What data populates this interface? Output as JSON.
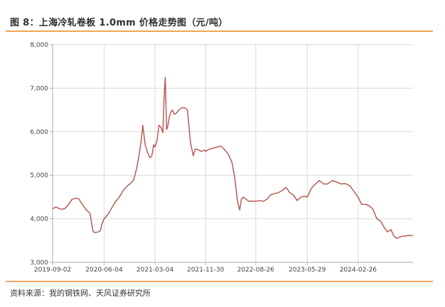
{
  "header": {
    "title": "图 8：上海冷轧卷板 1.0mm 价格走势图（元/吨）"
  },
  "footer": {
    "source": "资料来源：我的钢铁网、天风证券研究所"
  },
  "colors": {
    "line": "#b5524c",
    "grid": "#d9d9d9",
    "axis": "#aaaaaa",
    "accent_rule": "#f0a35a"
  },
  "chart_data": {
    "type": "line",
    "title": "上海冷轧卷板 1.0mm 价格走势图（元/吨）",
    "xlabel": "",
    "ylabel": "",
    "ylim": [
      3000,
      8000
    ],
    "y_ticks": [
      "3,000",
      "4,000",
      "5,000",
      "6,000",
      "7,000",
      "8,000"
    ],
    "y_tick_values": [
      3000,
      4000,
      5000,
      6000,
      7000,
      8000
    ],
    "x_ticks": [
      "2019-09-02",
      "2020-06-04",
      "2021-03-04",
      "2021-11-30",
      "2022-08-26",
      "2023-05-29",
      "2024-02-26"
    ],
    "xlim": [
      "2019-09-02",
      "2024-12-16"
    ],
    "grid": true,
    "legend": "none",
    "series": [
      {
        "x": [
          "2019-09-02",
          "2019-09-20",
          "2019-10-15",
          "2019-11-05",
          "2019-11-25",
          "2019-12-15",
          "2020-01-05",
          "2020-01-20",
          "2020-02-10",
          "2020-03-01",
          "2020-03-20",
          "2020-04-05",
          "2020-04-15",
          "2020-05-05",
          "2020-05-15",
          "2020-05-25",
          "2020-06-04",
          "2020-06-25",
          "2020-07-15",
          "2020-08-05",
          "2020-08-25",
          "2020-09-15",
          "2020-10-05",
          "2020-10-25",
          "2020-11-10",
          "2020-11-25",
          "2020-12-10",
          "2020-12-20",
          "2020-12-28",
          "2021-01-10",
          "2021-01-25",
          "2021-02-05",
          "2021-02-15",
          "2021-02-25",
          "2021-03-04",
          "2021-03-15",
          "2021-03-25",
          "2021-04-05",
          "2021-04-15",
          "2021-04-22",
          "2021-04-28",
          "2021-05-05",
          "2021-05-10",
          "2021-05-20",
          "2021-05-28",
          "2021-06-05",
          "2021-06-15",
          "2021-06-25",
          "2021-07-10",
          "2021-07-25",
          "2021-08-10",
          "2021-08-25",
          "2021-09-10",
          "2021-09-25",
          "2021-10-05",
          "2021-10-15",
          "2021-10-25",
          "2021-11-05",
          "2021-11-15",
          "2021-11-25",
          "2021-11-30",
          "2021-12-20",
          "2022-01-10",
          "2022-01-30",
          "2022-02-20",
          "2022-03-10",
          "2022-04-01",
          "2022-04-20",
          "2022-05-05",
          "2022-05-20",
          "2022-06-01",
          "2022-06-10",
          "2022-06-20",
          "2022-07-05",
          "2022-07-20",
          "2022-08-05",
          "2022-08-26",
          "2022-09-15",
          "2022-10-05",
          "2022-10-25",
          "2022-11-15",
          "2022-12-05",
          "2022-12-25",
          "2023-01-15",
          "2023-02-05",
          "2023-02-25",
          "2023-03-15",
          "2023-04-05",
          "2023-04-25",
          "2023-05-15",
          "2023-05-29",
          "2023-06-20",
          "2023-07-10",
          "2023-08-01",
          "2023-08-25",
          "2023-09-15",
          "2023-10-10",
          "2023-11-01",
          "2023-11-25",
          "2023-12-20",
          "2024-01-15",
          "2024-02-05",
          "2024-02-26",
          "2024-03-15",
          "2024-04-05",
          "2024-04-25",
          "2024-05-15",
          "2024-06-05",
          "2024-06-25",
          "2024-07-15",
          "2024-08-01",
          "2024-08-20",
          "2024-09-05",
          "2024-09-20",
          "2024-10-05",
          "2024-10-20",
          "2024-11-05",
          "2024-11-20",
          "2024-12-05",
          "2024-12-16"
        ],
        "y": [
          4230,
          4270,
          4220,
          4230,
          4320,
          4450,
          4470,
          4460,
          4320,
          4200,
          4130,
          3720,
          3680,
          3700,
          3730,
          3900,
          4000,
          4100,
          4250,
          4400,
          4500,
          4650,
          4750,
          4820,
          4900,
          5150,
          5500,
          5800,
          6150,
          5700,
          5500,
          5400,
          5450,
          5700,
          5650,
          5800,
          6150,
          6100,
          5980,
          6800,
          7250,
          6050,
          6100,
          6350,
          6450,
          6500,
          6400,
          6420,
          6500,
          6550,
          6550,
          6500,
          5750,
          5450,
          5600,
          5600,
          5580,
          5550,
          5560,
          5580,
          5550,
          5600,
          5620,
          5650,
          5670,
          5600,
          5480,
          5300,
          4950,
          4400,
          4200,
          4450,
          4500,
          4450,
          4400,
          4410,
          4400,
          4420,
          4400,
          4450,
          4550,
          4580,
          4600,
          4650,
          4720,
          4600,
          4550,
          4420,
          4500,
          4520,
          4500,
          4700,
          4790,
          4880,
          4800,
          4800,
          4880,
          4850,
          4800,
          4810,
          4750,
          4620,
          4500,
          4330,
          4330,
          4300,
          4220,
          4000,
          3950,
          3800,
          3700,
          3750,
          3600,
          3550,
          3580,
          3600,
          3600,
          3620,
          3610,
          3620
        ]
      }
    ]
  }
}
